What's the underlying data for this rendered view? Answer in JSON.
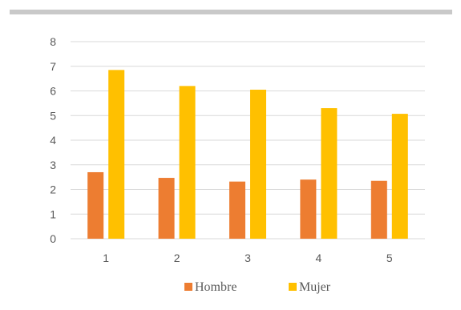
{
  "chart_data": {
    "type": "bar",
    "categories": [
      "1",
      "2",
      "3",
      "4",
      "5"
    ],
    "series": [
      {
        "name": "Hombre",
        "values": [
          2.7,
          2.47,
          2.32,
          2.4,
          2.35
        ],
        "color": "#ED7D31"
      },
      {
        "name": "Mujer",
        "values": [
          6.85,
          6.2,
          6.05,
          5.3,
          5.07
        ],
        "color": "#FFC000"
      }
    ],
    "title": "",
    "xlabel": "",
    "ylabel": "",
    "ylim": [
      0,
      8
    ],
    "yticks": [
      "0",
      "1",
      "2",
      "3",
      "4",
      "5",
      "6",
      "7",
      "8"
    ],
    "grid": true,
    "gridline_color": "#D9D9D9",
    "legend_position": "bottom"
  }
}
